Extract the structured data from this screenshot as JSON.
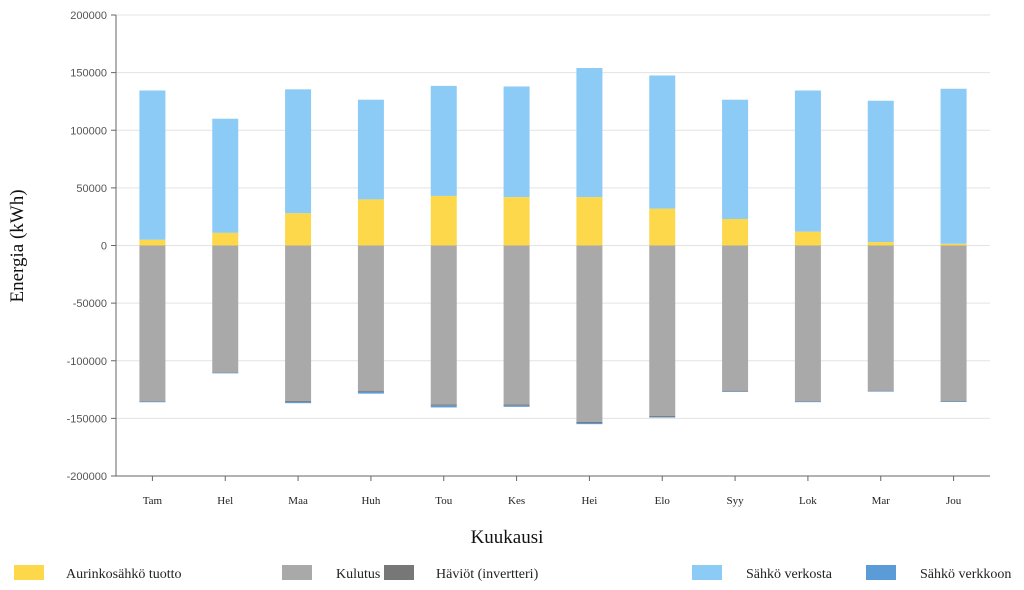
{
  "chart_data": {
    "type": "bar",
    "stacked": true,
    "title": "",
    "xlabel": "Kuukausi",
    "ylabel": "Energia (kWh)",
    "ylim": [
      -200000,
      200000
    ],
    "yticks": [
      200000,
      150000,
      100000,
      50000,
      0,
      -50000,
      -100000,
      -150000,
      -200000
    ],
    "grid": true,
    "legend_position": "bottom",
    "categories": [
      "Tam",
      "Hel",
      "Maa",
      "Huh",
      "Tou",
      "Kes",
      "Hei",
      "Elo",
      "Syy",
      "Lok",
      "Mar",
      "Jou"
    ],
    "series": [
      {
        "name": "Aurinkosähkö tuotto",
        "color": "#fdd84a",
        "values": [
          5000,
          11000,
          28000,
          40000,
          43000,
          42000,
          42000,
          32000,
          23000,
          12000,
          3000,
          1500
        ]
      },
      {
        "name": "Kulutus",
        "color": "#a9a9a9",
        "values": [
          -135000,
          -110000,
          -135000,
          -126000,
          -138000,
          -138000,
          -153000,
          -148000,
          -126000,
          -135000,
          -126000,
          -135000
        ]
      },
      {
        "name": "Häviöt (invertteri)",
        "color": "#777777",
        "values": [
          -500,
          -500,
          -800,
          -1000,
          -1000,
          -1000,
          -1000,
          -800,
          -600,
          -500,
          -400,
          -300
        ]
      },
      {
        "name": "Sähkö verkosta",
        "color": "#8ccbf5",
        "values": [
          129500,
          99000,
          107500,
          86500,
          95500,
          96000,
          112000,
          115500,
          103500,
          122500,
          122600,
          134500
        ]
      },
      {
        "name": "Sähkö verkkoon",
        "color": "#5a9bd8",
        "values": [
          -500,
          -300,
          -1000,
          -1500,
          -1500,
          -1000,
          -1000,
          -500,
          -300,
          -200,
          -100,
          -100
        ]
      }
    ]
  }
}
